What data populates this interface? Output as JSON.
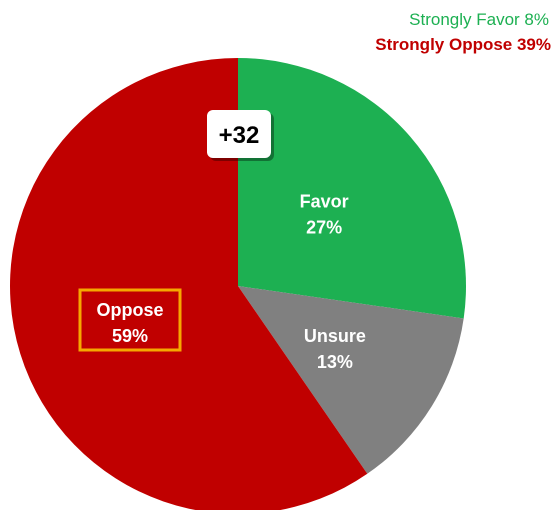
{
  "chart_data": {
    "type": "pie",
    "slices": [
      {
        "label": "Favor",
        "value": 27,
        "value_text": "27%",
        "color": "#1db052"
      },
      {
        "label": "Unsure",
        "value": 13,
        "value_text": "13%",
        "color": "#808080"
      },
      {
        "label": "Oppose",
        "value": 59,
        "value_text": "59%",
        "color": "#c00000"
      }
    ],
    "margin_badge": "+32",
    "annotations": {
      "strongly_favor": "Strongly  Favor 8%",
      "strongly_oppose": "Strongly Oppose 39%"
    },
    "highlight_color": "#f5a800"
  }
}
